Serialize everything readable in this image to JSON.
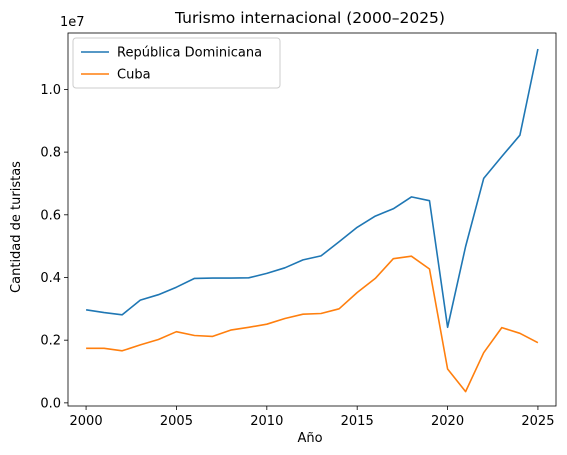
{
  "chart_data": {
    "type": "line",
    "title": "Turismo internacional (2000–2025)",
    "xlabel": "Año",
    "ylabel": "Cantidad de turistas",
    "y_offset_label": "1e7",
    "xlim": [
      1999,
      2026
    ],
    "ylim": [
      -100000,
      11800000
    ],
    "x_ticks": [
      2000,
      2005,
      2010,
      2015,
      2020,
      2025
    ],
    "y_ticks": [
      0,
      2000000,
      4000000,
      6000000,
      8000000,
      10000000
    ],
    "y_tick_labels": [
      "0.0",
      "0.2",
      "0.4",
      "0.6",
      "0.8",
      "1.0"
    ],
    "grid": false,
    "legend_position": "upper-left",
    "x": [
      2000,
      2001,
      2002,
      2003,
      2004,
      2005,
      2006,
      2007,
      2008,
      2009,
      2010,
      2011,
      2012,
      2013,
      2014,
      2015,
      2016,
      2017,
      2018,
      2019,
      2020,
      2021,
      2022,
      2023,
      2024,
      2025
    ],
    "series": [
      {
        "name": "República Dominicana",
        "color": "#1f77b4",
        "values": [
          2970000,
          2880000,
          2810000,
          3280000,
          3450000,
          3690000,
          3970000,
          3980000,
          3980000,
          3990000,
          4130000,
          4310000,
          4560000,
          4690000,
          5140000,
          5600000,
          5960000,
          6190000,
          6570000,
          6450000,
          2410000,
          4990000,
          7160000,
          7860000,
          8540000,
          11290000
        ]
      },
      {
        "name": "Cuba",
        "color": "#ff7f0e",
        "values": [
          1740000,
          1740000,
          1660000,
          1850000,
          2020000,
          2270000,
          2150000,
          2120000,
          2320000,
          2410000,
          2510000,
          2690000,
          2830000,
          2850000,
          3000000,
          3520000,
          3970000,
          4600000,
          4680000,
          4270000,
          1080000,
          360000,
          1600000,
          2400000,
          2220000,
          1920000
        ]
      }
    ]
  }
}
